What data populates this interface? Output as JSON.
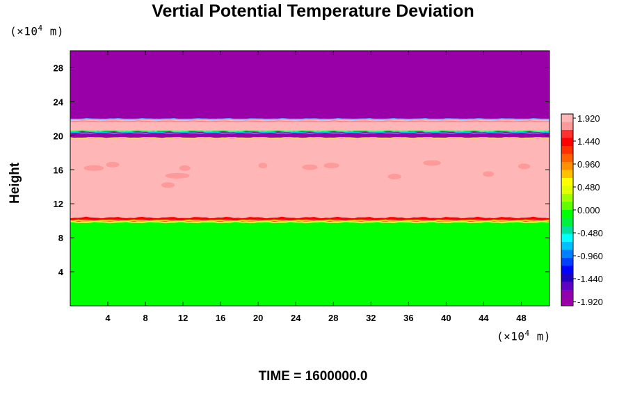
{
  "chart_data": {
    "type": "heatmap",
    "title": "Vertial Potential Temperature Deviation",
    "ylabel": "Height",
    "y_unit_prefix": "(×10",
    "y_unit_exp": "4",
    "y_unit_suffix": " m)",
    "x_unit_prefix": "(×10",
    "x_unit_exp": "4",
    "x_unit_suffix": " m)",
    "footer": "TIME = 1600000.0",
    "xlim": [
      0,
      51
    ],
    "ylim": [
      0,
      30
    ],
    "x_ticks": [
      "4",
      "8",
      "12",
      "16",
      "20",
      "24",
      "28",
      "32",
      "36",
      "40",
      "44",
      "48"
    ],
    "y_ticks": [
      "4",
      "8",
      "12",
      "16",
      "20",
      "24",
      "28"
    ],
    "x_tick_values": [
      4,
      8,
      12,
      16,
      20,
      24,
      28,
      32,
      36,
      40,
      44,
      48
    ],
    "y_tick_values": [
      4,
      8,
      12,
      16,
      20,
      24,
      28
    ],
    "colorbar": {
      "range": [
        -1.92,
        1.92
      ],
      "labels": [
        "1.920",
        "1.440",
        "0.960",
        "0.480",
        "0.000",
        "-0.480",
        "-0.960",
        "-1.440",
        "-1.920"
      ],
      "label_values": [
        1.92,
        1.44,
        0.96,
        0.48,
        0.0,
        -0.48,
        -0.96,
        -1.44,
        -1.92
      ],
      "colors": [
        "#ffb6b6",
        "#ff9a9a",
        "#ff3030",
        "#ff0000",
        "#ff3000",
        "#ff6000",
        "#ff9000",
        "#ffc000",
        "#ffff00",
        "#e0ff00",
        "#a0ff00",
        "#60ff00",
        "#00ff00",
        "#00f040",
        "#00e0a0",
        "#00ffff",
        "#00c0ff",
        "#0080ff",
        "#0040ff",
        "#0000ff",
        "#2000c0",
        "#6000c0",
        "#9000b0",
        "#9a00a8"
      ]
    },
    "bands": [
      {
        "y0": 0,
        "y1": 9.9,
        "value": 0.0,
        "color": "#00ff00"
      },
      {
        "y0": 9.9,
        "y1": 10.3,
        "value": 1.2,
        "color": "#ff3030"
      },
      {
        "y0": 10.3,
        "y1": 19.7,
        "value": 1.92,
        "color": "#ffb6b6"
      },
      {
        "y0": 19.7,
        "y1": 20.6,
        "value": -1.92,
        "color": "#9a00a8"
      },
      {
        "y0": 20.6,
        "y1": 22.0,
        "value": 1.92,
        "color": "#ffb6b6"
      },
      {
        "y0": 22.0,
        "y1": 30,
        "value": -1.92,
        "color": "#9a00a8"
      }
    ]
  }
}
